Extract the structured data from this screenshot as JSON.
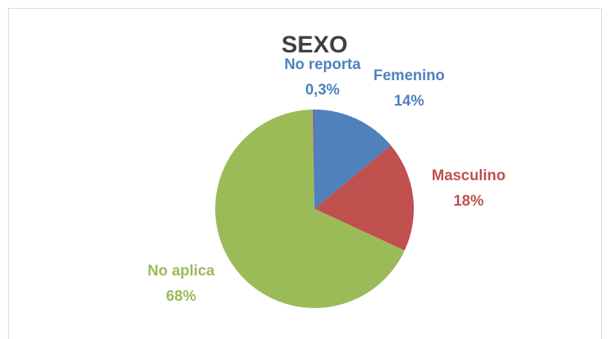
{
  "chart_data": {
    "type": "pie",
    "title": "SEXO",
    "categories": [
      "Femenino",
      "Masculino",
      "No aplica",
      "No reporta"
    ],
    "values": [
      14,
      18,
      68,
      0.3
    ],
    "value_labels": [
      "14%",
      "18%",
      "68%",
      "0,3%"
    ],
    "colors": [
      "#4f81bd",
      "#c0504d",
      "#9bbb59",
      "#8064a2"
    ]
  }
}
